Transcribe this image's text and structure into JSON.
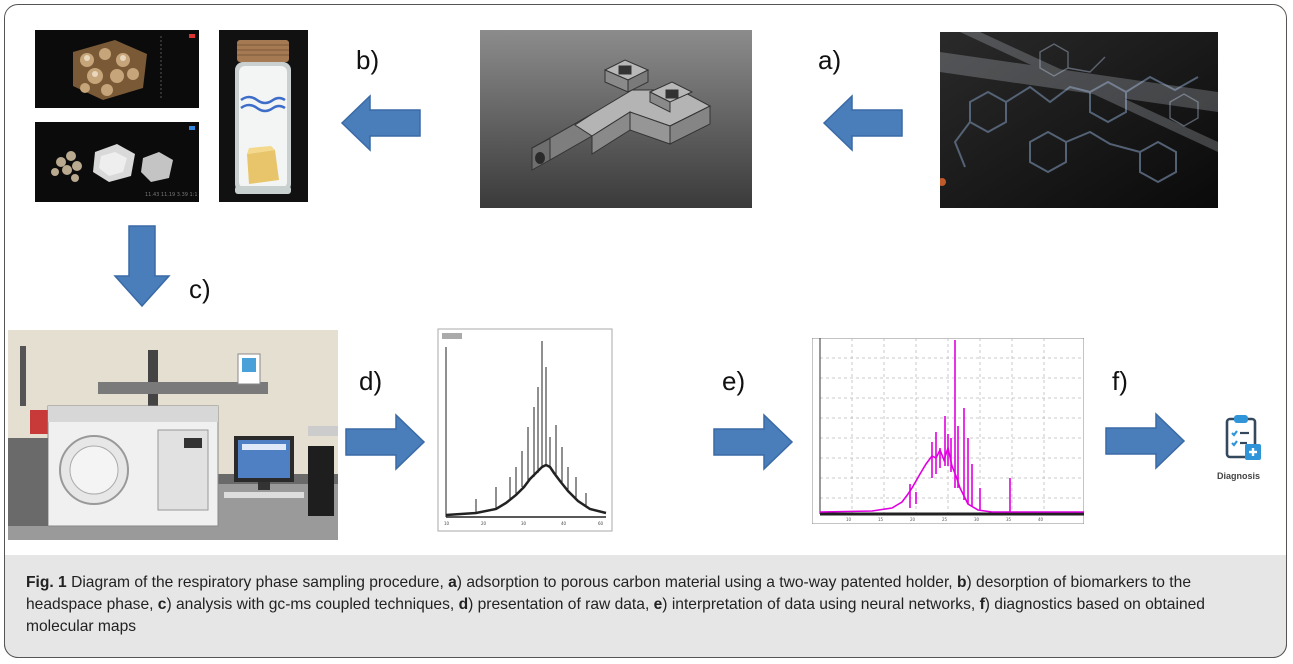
{
  "steps": {
    "a": "a)",
    "b": "b)",
    "c": "c)",
    "d": "d)",
    "e": "e)",
    "f": "f)"
  },
  "diagnosis_label": "Diagnosis",
  "caption": {
    "fig": "Fig. 1",
    "intro": " Diagram of the respiratory phase sampling procedure, ",
    "a_key": "a",
    "a_text": ") adsorption to porous carbon material using a two-way patented holder, ",
    "b_key": "b",
    "b_text": ") desorption of biomarkers to the headspace phase, ",
    "c_key": "c",
    "c_text": ") analysis with gc-ms coupled techniques, ",
    "d_key": "d",
    "d_text": ") presentation of raw data, ",
    "e_key": "e",
    "e_text": ") interpretation of data using neural networks, ",
    "f_key": "f",
    "f_text": ") diagnostics based on obtained molecular maps"
  },
  "colors": {
    "arrow": "#4a7ebb",
    "arrow_stroke": "#3a6aa6",
    "peak_magenta": "#e000e0",
    "caption_bg": "#e6e6e6"
  }
}
